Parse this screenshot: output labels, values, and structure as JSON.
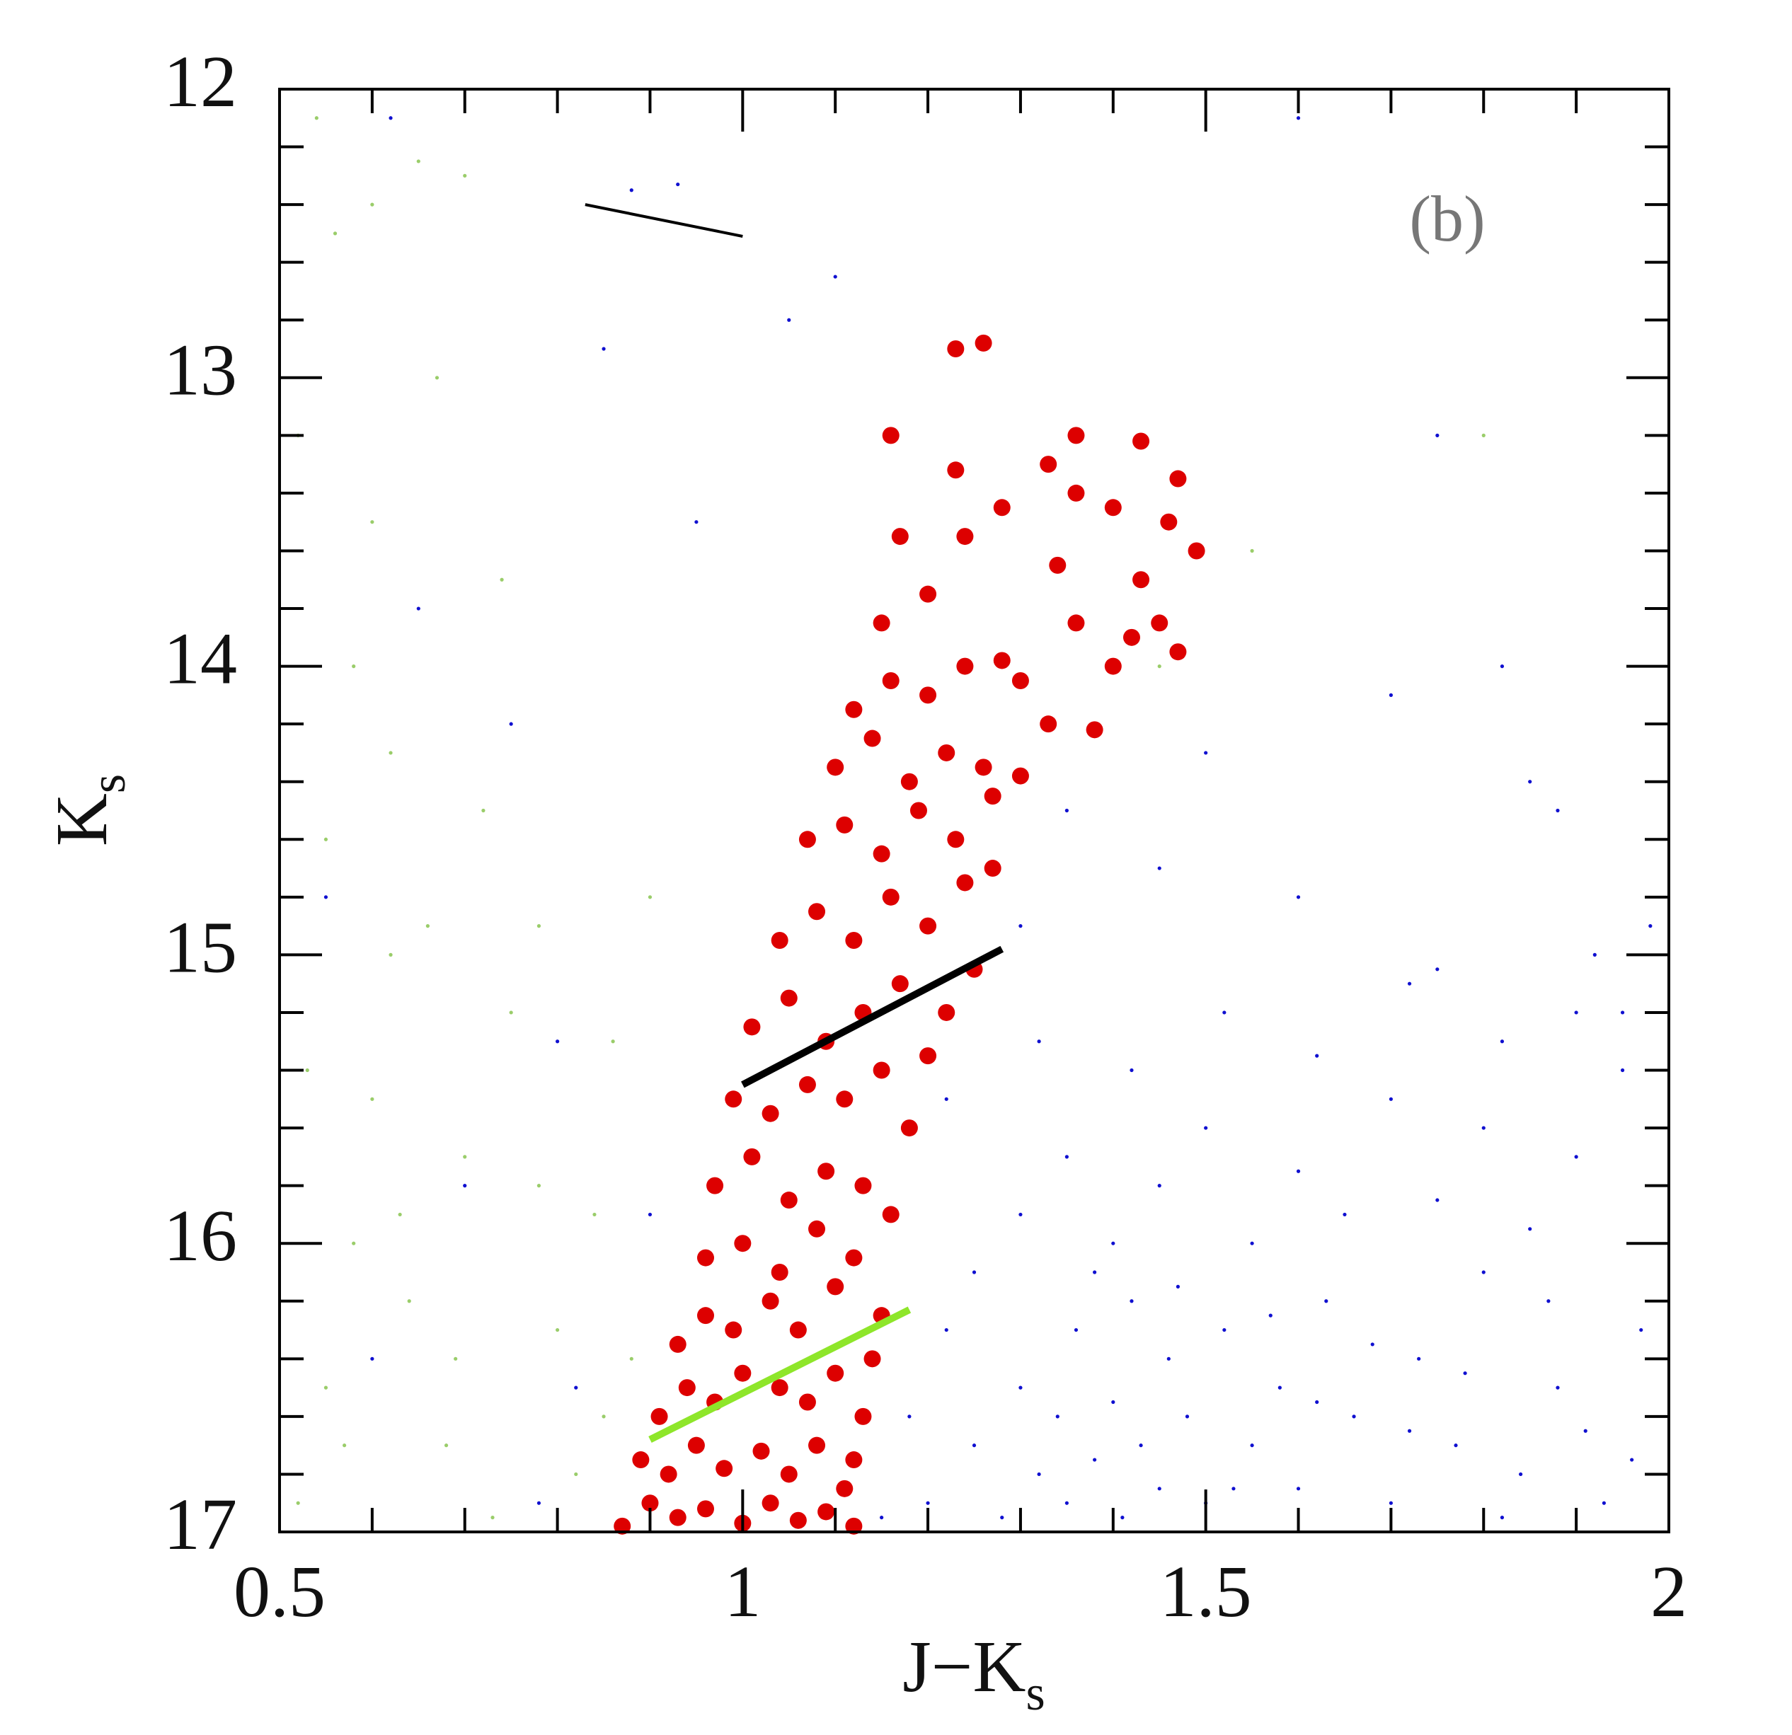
{
  "chart_data": {
    "type": "scatter",
    "xlabel": [
      "J−K",
      "s"
    ],
    "ylabel": [
      "K",
      "s"
    ],
    "annotation": "(b)",
    "xlim": [
      0.5,
      2
    ],
    "ylim": [
      17,
      12
    ],
    "xticks": [
      0.5,
      1,
      1.5,
      2
    ],
    "yticks": [
      12,
      13,
      14,
      15,
      16,
      17
    ],
    "xminorticks": [
      0.6,
      0.7,
      0.8,
      0.9,
      1.1,
      1.2,
      1.3,
      1.4,
      1.6,
      1.7,
      1.8,
      1.9
    ],
    "yminorticks": [
      12.2,
      12.4,
      12.6,
      12.8,
      13.2,
      13.4,
      13.6,
      13.8,
      14.2,
      14.4,
      14.6,
      14.8,
      15.2,
      15.4,
      15.6,
      15.8,
      16.2,
      16.4,
      16.6,
      16.8
    ],
    "grid": false,
    "series": [
      {
        "kind": "scatter",
        "marker": "dot",
        "color": "#9acd6a",
        "x": [
          0.52,
          0.55,
          0.58,
          0.6,
          0.62,
          0.55,
          0.58,
          0.6,
          0.52,
          0.56,
          0.6,
          0.65,
          0.7,
          0.67,
          0.72,
          0.75,
          0.78,
          0.8,
          0.82,
          0.85,
          0.68,
          0.64,
          0.7,
          0.66,
          0.62,
          0.74,
          0.78,
          0.84,
          0.88,
          0.53,
          0.57,
          0.63,
          0.69,
          0.73,
          0.86,
          0.9,
          0.54,
          1.45,
          1.55,
          1.8
        ],
        "values": [
          16.9,
          16.5,
          16.0,
          15.5,
          15.0,
          14.6,
          14.0,
          13.5,
          13.2,
          12.5,
          12.4,
          12.25,
          12.3,
          13.0,
          14.5,
          15.2,
          15.8,
          16.3,
          16.8,
          16.6,
          16.7,
          16.2,
          15.7,
          14.9,
          14.3,
          13.7,
          14.9,
          15.9,
          16.4,
          15.4,
          16.7,
          15.9,
          16.4,
          16.95,
          15.3,
          14.8,
          12.1,
          14.0,
          13.6,
          13.2
        ]
      },
      {
        "kind": "scatter",
        "marker": "dot",
        "color": "#1010d0",
        "x": [
          1.2,
          1.25,
          1.28,
          1.3,
          1.32,
          1.34,
          1.35,
          1.36,
          1.38,
          1.4,
          1.41,
          1.42,
          1.43,
          1.45,
          1.46,
          1.48,
          1.5,
          1.52,
          1.55,
          1.58,
          1.6,
          1.63,
          1.66,
          1.7,
          1.73,
          1.77,
          1.8,
          1.84,
          1.88,
          1.93,
          1.97,
          1.25,
          1.3,
          1.35,
          1.4,
          1.45,
          1.5,
          1.55,
          1.6,
          1.65,
          1.7,
          1.75,
          1.8,
          1.85,
          1.9,
          1.95,
          1.22,
          1.32,
          1.42,
          1.52,
          1.62,
          1.72,
          1.82,
          1.92,
          1.3,
          1.45,
          1.6,
          1.75,
          1.88,
          1.98,
          1.5,
          1.7,
          1.85,
          1.35,
          1.95,
          1.15,
          1.18,
          1.22,
          1.38,
          1.47,
          1.53,
          1.57,
          1.62,
          1.68,
          1.72,
          1.78,
          1.82,
          1.87,
          1.91,
          1.96,
          0.9,
          0.8,
          0.7,
          0.6,
          0.55,
          0.75,
          0.95,
          0.85,
          0.65,
          1.05,
          0.88,
          0.93,
          1.1,
          0.62,
          0.78,
          0.82,
          1.6,
          1.82,
          1.75,
          1.9
        ],
        "values": [
          16.9,
          16.7,
          16.95,
          16.5,
          16.8,
          16.6,
          16.9,
          16.3,
          16.75,
          16.55,
          16.95,
          16.2,
          16.7,
          16.85,
          16.4,
          16.6,
          16.9,
          16.3,
          16.7,
          16.5,
          16.85,
          16.2,
          16.6,
          16.9,
          16.4,
          16.7,
          16.1,
          16.8,
          16.5,
          16.9,
          16.3,
          16.1,
          15.9,
          15.7,
          16.0,
          15.8,
          15.6,
          16.0,
          15.75,
          15.9,
          15.5,
          15.85,
          15.6,
          15.95,
          15.7,
          15.4,
          15.5,
          15.3,
          15.4,
          15.2,
          15.35,
          15.1,
          15.3,
          15.0,
          14.9,
          14.7,
          14.8,
          15.05,
          14.5,
          14.9,
          14.3,
          14.1,
          14.4,
          14.5,
          15.2,
          16.95,
          16.6,
          16.3,
          16.1,
          16.15,
          16.85,
          16.25,
          16.55,
          16.35,
          16.65,
          16.45,
          16.95,
          16.2,
          16.65,
          16.75,
          15.9,
          15.3,
          15.8,
          16.4,
          14.8,
          14.2,
          13.5,
          12.9,
          13.8,
          12.8,
          12.35,
          12.33,
          12.65,
          12.1,
          16.9,
          16.5,
          12.1,
          14.0,
          13.2,
          15.2
        ]
      },
      {
        "kind": "scatter",
        "marker": "filled-circle",
        "color": "#dd0000",
        "x": [
          0.87,
          0.9,
          0.93,
          0.96,
          1.0,
          1.03,
          1.06,
          1.09,
          1.12,
          1.11,
          0.89,
          0.92,
          0.95,
          0.98,
          1.02,
          1.05,
          1.08,
          1.12,
          1.13,
          0.91,
          0.94,
          0.97,
          1.0,
          1.04,
          1.07,
          1.1,
          1.14,
          0.93,
          0.96,
          0.99,
          1.03,
          1.06,
          1.1,
          1.15,
          0.96,
          1.0,
          1.04,
          1.08,
          1.12,
          1.16,
          0.97,
          1.01,
          1.05,
          1.09,
          1.13,
          1.18,
          0.99,
          1.03,
          1.07,
          1.11,
          1.15,
          1.2,
          1.01,
          1.05,
          1.09,
          1.13,
          1.17,
          1.22,
          1.25,
          1.04,
          1.08,
          1.12,
          1.16,
          1.2,
          1.24,
          1.27,
          1.07,
          1.11,
          1.15,
          1.19,
          1.23,
          1.27,
          1.1,
          1.14,
          1.18,
          1.22,
          1.26,
          1.3,
          1.12,
          1.16,
          1.2,
          1.24,
          1.28,
          1.3,
          1.33,
          1.36,
          1.4,
          1.38,
          1.42,
          1.45,
          1.47,
          1.34,
          1.43,
          1.15,
          1.2,
          1.24,
          1.17,
          1.28,
          1.33,
          1.36,
          1.4,
          1.46,
          1.49,
          1.47,
          1.43,
          1.36,
          1.16,
          1.23,
          1.26,
          1.23
        ],
        "values": [
          16.98,
          16.9,
          16.95,
          16.92,
          16.97,
          16.9,
          16.96,
          16.93,
          16.98,
          16.85,
          16.75,
          16.8,
          16.7,
          16.78,
          16.72,
          16.8,
          16.7,
          16.75,
          16.6,
          16.6,
          16.5,
          16.55,
          16.45,
          16.5,
          16.55,
          16.45,
          16.4,
          16.35,
          16.25,
          16.3,
          16.2,
          16.3,
          16.15,
          16.25,
          16.05,
          16.0,
          16.1,
          15.95,
          16.05,
          15.9,
          15.8,
          15.7,
          15.85,
          15.75,
          15.8,
          15.6,
          15.5,
          15.55,
          15.45,
          15.5,
          15.4,
          15.35,
          15.25,
          15.15,
          15.3,
          15.2,
          15.1,
          15.2,
          15.05,
          14.95,
          14.85,
          14.95,
          14.8,
          14.9,
          14.75,
          14.7,
          14.6,
          14.55,
          14.65,
          14.5,
          14.6,
          14.45,
          14.35,
          14.25,
          14.4,
          14.3,
          14.35,
          14.38,
          14.15,
          14.05,
          14.1,
          14.0,
          13.98,
          14.05,
          14.2,
          13.85,
          14.0,
          14.22,
          13.9,
          13.85,
          13.95,
          13.65,
          13.7,
          13.85,
          13.75,
          13.55,
          13.55,
          13.45,
          13.3,
          13.4,
          13.45,
          13.5,
          13.6,
          13.35,
          13.22,
          13.2,
          13.2,
          12.9,
          12.88,
          13.32
        ]
      },
      {
        "kind": "line",
        "color": "#000000",
        "width": "thin",
        "x": [
          0.83,
          1.0
        ],
        "values": [
          12.4,
          12.51
        ]
      },
      {
        "kind": "line",
        "color": "#000000",
        "width": "thick",
        "x": [
          1.0,
          1.28
        ],
        "values": [
          15.45,
          14.98
        ]
      },
      {
        "kind": "line",
        "color": "#8ee62a",
        "width": "thick",
        "x": [
          0.9,
          1.18
        ],
        "values": [
          16.68,
          16.23
        ]
      }
    ]
  }
}
